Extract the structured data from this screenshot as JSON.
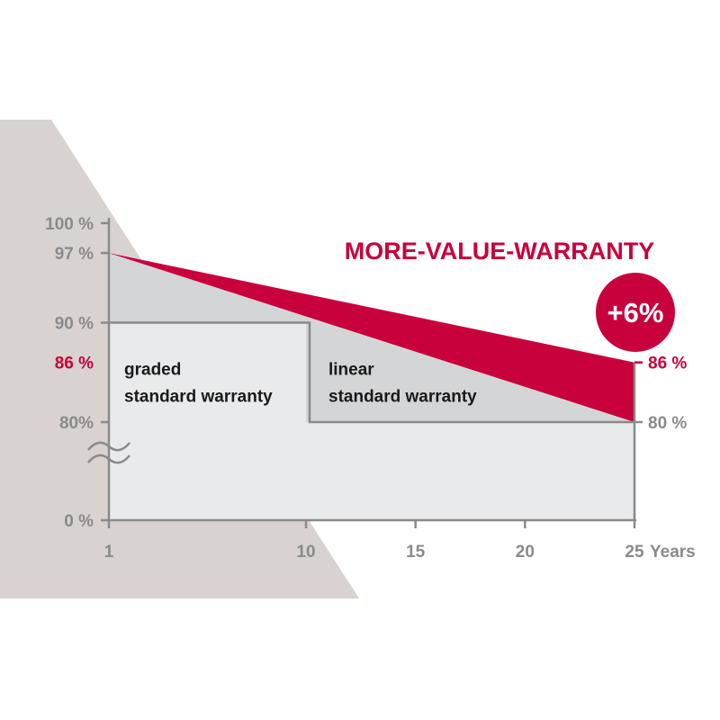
{
  "colors": {
    "background_shape": "#d8d3d0",
    "graded_area": "#e9eaeb",
    "linear_area": "#d4d5d7",
    "bonus_area": "#c8003c",
    "axis": "#8a8a8a",
    "accent": "#c8003c"
  },
  "chart_data": {
    "type": "area",
    "title": "MORE-VALUE-WARRANTY",
    "badge": "+6%",
    "x_ticks": [
      "1",
      "10",
      "15",
      "20",
      "25"
    ],
    "x_unit_label": "Years",
    "xlim": [
      1,
      25
    ],
    "y_ticks_left": [
      {
        "value": 100,
        "label": "100 %",
        "accent": false
      },
      {
        "value": 97,
        "label": "97 %",
        "accent": false
      },
      {
        "value": 90,
        "label": "90 %",
        "accent": false
      },
      {
        "value": 86,
        "label": "86 %",
        "accent": true
      },
      {
        "value": 80,
        "label": "80%",
        "accent": false
      },
      {
        "value": 0,
        "label": "0 %",
        "accent": false
      }
    ],
    "y_ticks_right": [
      {
        "value": 86,
        "label": "86 %",
        "accent": true
      },
      {
        "value": 80,
        "label": "80 %",
        "accent": false
      }
    ],
    "axis_break": true,
    "series": [
      {
        "name": "graded standard warranty",
        "x": [
          1,
          10,
          10,
          25
        ],
        "y": [
          90,
          90,
          80,
          80
        ]
      },
      {
        "name": "linear standard warranty",
        "x": [
          1,
          25
        ],
        "y": [
          97,
          80
        ]
      },
      {
        "name": "MORE-VALUE-WARRANTY",
        "x": [
          1,
          25
        ],
        "y": [
          97,
          86
        ]
      }
    ],
    "annotations": [
      {
        "text": [
          "graded",
          "standard warranty"
        ],
        "x": 1,
        "y": 86
      },
      {
        "text": [
          "linear",
          "standard warranty"
        ],
        "x": 10,
        "y": 86
      }
    ]
  }
}
